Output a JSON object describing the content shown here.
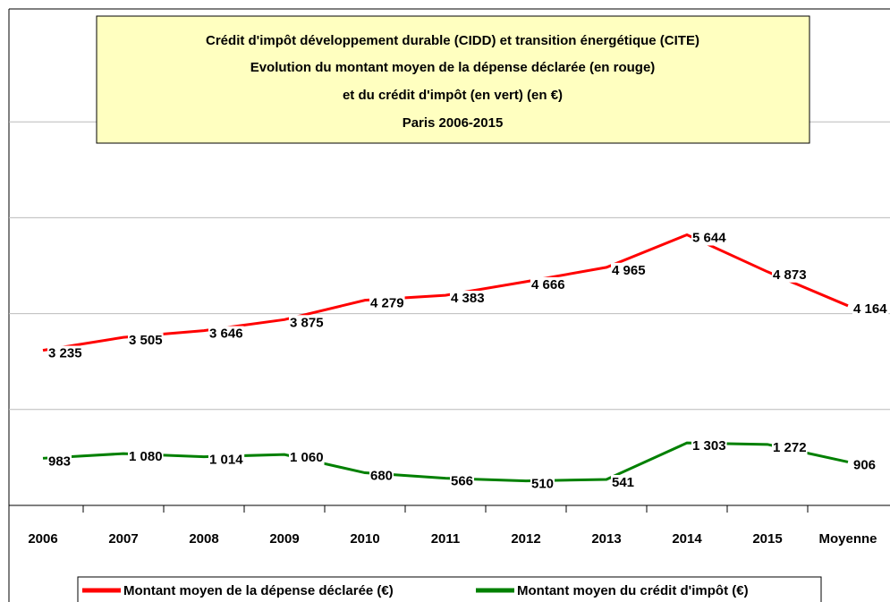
{
  "chart_data": {
    "type": "line",
    "title": [
      "Crédit d'impôt développement durable (CIDD) et transition énergétique (CITE)",
      "Evolution du montant moyen de la dépense déclarée (en rouge)",
      "et du crédit d'impôt (en vert) (en €)",
      "Paris 2006-2015"
    ],
    "categories": [
      "2006",
      "2007",
      "2008",
      "2009",
      "2010",
      "2011",
      "2012",
      "2013",
      "2014",
      "2015",
      "Moyenne"
    ],
    "series": [
      {
        "name": "Montant moyen de la dépense déclarée (€)",
        "color": "#ff0000",
        "values": [
          3235,
          3505,
          3646,
          3875,
          4279,
          4383,
          4666,
          4965,
          5644,
          4873,
          4164
        ],
        "value_labels": [
          "3 235",
          "3 505",
          "3 646",
          "3 875",
          "4 279",
          "4 383",
          "4 666",
          "4 965",
          "5 644",
          "4 873",
          "4 164"
        ]
      },
      {
        "name": "Montant moyen du crédit d'impôt (€)",
        "color": "#008000",
        "values": [
          983,
          1080,
          1014,
          1060,
          680,
          566,
          510,
          541,
          1303,
          1272,
          906
        ],
        "value_labels": [
          "983",
          "1 080",
          "1 014",
          "1 060",
          "680",
          "566",
          "510",
          "541",
          "1 303",
          "1 272",
          "906"
        ]
      }
    ],
    "ylim": [
      0,
      10000
    ],
    "yticks": [
      0,
      2000,
      4000,
      6000,
      8000
    ],
    "grid": true
  }
}
